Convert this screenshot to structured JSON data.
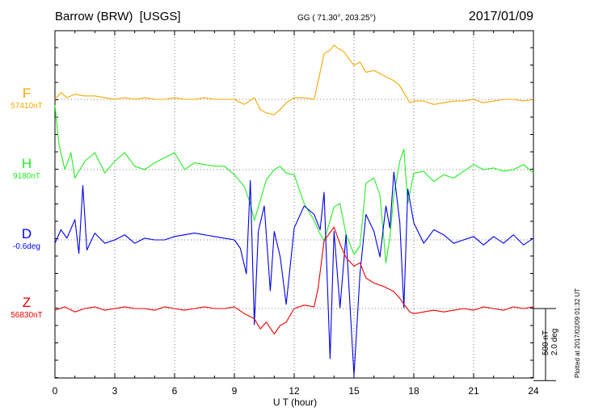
{
  "header": {
    "station": "Barrow (BRW)  [USGS]",
    "coords": "GG ( 71.30°, 203.25°)",
    "date": "2017/01/09"
  },
  "chart_data": {
    "type": "line",
    "xlabel": "U T (hour)",
    "xlim": [
      0,
      24
    ],
    "xticks": [
      0,
      3,
      6,
      9,
      12,
      15,
      18,
      21,
      24
    ],
    "grid": true,
    "scale_label": "500 nT",
    "scale_label_2": "2.0 deg",
    "plotted_note": "Plotted at 2017/02/09 01:32 UT",
    "scale_per_division": 500,
    "series": [
      {
        "name": "F",
        "baseline": "57410nT",
        "color": "#f5a800",
        "baseline_value": 57410,
        "x": [
          0,
          0.3,
          0.6,
          1,
          1.5,
          2,
          2.5,
          3,
          3.5,
          4,
          4.5,
          5,
          5.5,
          6,
          6.5,
          7,
          7.5,
          8,
          8.5,
          9,
          9.5,
          10,
          10.3,
          10.6,
          11,
          11.3,
          11.6,
          12,
          12.5,
          13,
          13.3,
          13.5,
          13.8,
          14,
          14.2,
          14.5,
          14.8,
          15,
          15.3,
          15.6,
          16,
          16.5,
          17,
          17.3,
          17.6,
          17.8,
          18,
          18.5,
          19,
          19.5,
          20,
          20.5,
          21,
          21.5,
          22,
          22.5,
          23,
          23.5,
          24
        ],
        "y": [
          0,
          40,
          10,
          30,
          20,
          20,
          10,
          0,
          10,
          0,
          10,
          0,
          0,
          10,
          0,
          0,
          10,
          0,
          0,
          0,
          -30,
          10,
          -60,
          -80,
          -90,
          -60,
          -20,
          10,
          10,
          0,
          160,
          270,
          290,
          320,
          300,
          280,
          230,
          200,
          220,
          160,
          170,
          140,
          110,
          80,
          20,
          -20,
          -10,
          -10,
          -30,
          -20,
          -10,
          -10,
          0,
          -20,
          -10,
          0,
          0,
          -10,
          0
        ]
      },
      {
        "name": "H",
        "baseline": "9180nT",
        "color": "#22ee22",
        "baseline_value": 9180,
        "x": [
          0,
          0.2,
          0.5,
          0.8,
          1,
          1.5,
          2,
          2.5,
          3,
          3.5,
          4,
          4.5,
          5,
          5.5,
          6,
          6.5,
          7,
          7.5,
          8,
          8.5,
          9,
          9.5,
          9.8,
          10,
          10.3,
          10.6,
          11,
          11.3,
          11.6,
          12,
          12.5,
          13,
          13.3,
          13.5,
          13.8,
          14,
          14.3,
          14.6,
          15,
          15.3,
          15.6,
          16,
          16.3,
          16.6,
          16.8,
          17,
          17.3,
          17.5,
          17.7,
          18,
          18.5,
          19,
          19.5,
          20,
          20.5,
          21,
          21.5,
          22,
          22.5,
          23,
          23.5,
          24
        ],
        "y": [
          380,
          150,
          0,
          100,
          -50,
          50,
          100,
          -20,
          50,
          100,
          20,
          0,
          40,
          70,
          100,
          0,
          40,
          30,
          20,
          20,
          -30,
          -100,
          -200,
          -300,
          -180,
          -60,
          0,
          20,
          -20,
          -30,
          -200,
          -300,
          -380,
          -420,
          -300,
          -220,
          -200,
          -380,
          -500,
          -450,
          -80,
          -50,
          -150,
          -550,
          -400,
          -150,
          50,
          120,
          -200,
          -20,
          -10,
          -70,
          -30,
          -50,
          -10,
          30,
          0,
          10,
          -10,
          0,
          30,
          -20
        ]
      },
      {
        "name": "D",
        "baseline": "-0.6deg",
        "color": "#0000ee",
        "baseline_value": -0.6,
        "x": [
          0,
          0.3,
          0.6,
          1,
          1.2,
          1.4,
          1.6,
          2,
          2.5,
          3,
          3.5,
          4,
          4.5,
          5,
          5.5,
          6,
          6.5,
          7,
          7.5,
          8,
          8.5,
          9,
          9.3,
          9.6,
          9.8,
          10,
          10.2,
          10.5,
          10.8,
          11,
          11.3,
          11.6,
          12,
          12.5,
          13,
          13.3,
          13.5,
          13.8,
          14,
          14.3,
          14.6,
          15,
          15.3,
          15.6,
          16,
          16.3,
          16.6,
          16.8,
          17,
          17.3,
          17.5,
          17.7,
          18,
          18.5,
          19,
          19.5,
          20,
          20.5,
          21,
          21.5,
          22,
          22.5,
          23,
          23.5,
          24
        ],
        "y": [
          -20,
          60,
          10,
          120,
          -80,
          320,
          -60,
          40,
          -20,
          0,
          30,
          -20,
          10,
          0,
          0,
          20,
          30,
          40,
          30,
          20,
          10,
          0,
          -50,
          -200,
          350,
          -500,
          50,
          200,
          -300,
          50,
          -100,
          -380,
          70,
          200,
          150,
          60,
          280,
          -700,
          50,
          -400,
          30,
          -800,
          -200,
          150,
          50,
          -100,
          200,
          70,
          400,
          100,
          -400,
          300,
          100,
          -20,
          60,
          30,
          -20,
          0,
          20,
          -30,
          20,
          -20,
          30,
          -30,
          10
        ]
      },
      {
        "name": "Z",
        "baseline": "56830nT",
        "color": "#ee0000",
        "baseline_value": 56830,
        "x": [
          0,
          0.5,
          1,
          1.5,
          2,
          2.5,
          3,
          3.5,
          4,
          4.5,
          5,
          5.5,
          6,
          6.5,
          7,
          7.5,
          8,
          8.5,
          9,
          9.5,
          10,
          10.3,
          10.6,
          11,
          11.3,
          11.6,
          12,
          12.5,
          13,
          13.2,
          13.5,
          14,
          14.3,
          14.6,
          15,
          15.3,
          15.6,
          16,
          16.5,
          17,
          17.3,
          17.6,
          17.8,
          18,
          18.5,
          19,
          19.5,
          20,
          20.5,
          21,
          21.5,
          22,
          22.5,
          23,
          23.5,
          24
        ],
        "y": [
          -10,
          10,
          -20,
          0,
          10,
          -10,
          0,
          10,
          0,
          0,
          -10,
          10,
          0,
          -10,
          0,
          10,
          0,
          0,
          10,
          -30,
          -60,
          -120,
          -80,
          -150,
          -100,
          -80,
          0,
          20,
          10,
          120,
          400,
          480,
          380,
          300,
          250,
          270,
          180,
          150,
          130,
          100,
          60,
          10,
          -20,
          -30,
          -20,
          -10,
          -20,
          -10,
          0,
          -10,
          10,
          0,
          -10,
          10,
          0,
          10
        ]
      }
    ]
  }
}
